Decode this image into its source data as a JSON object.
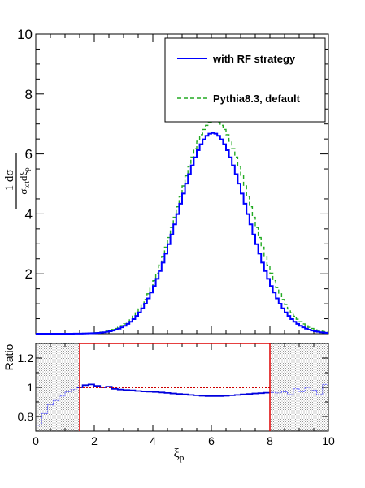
{
  "chart_data": [
    {
      "type": "line",
      "title": "",
      "xlabel": "ξ_p",
      "ylabel": "1/σ_tot dσ/dξ_p",
      "xlim": [
        0,
        10
      ],
      "ylim": [
        0,
        10
      ],
      "x_tick_labels": [
        "0",
        "2",
        "4",
        "6",
        "8",
        "10"
      ],
      "y_tick_labels": [
        "2",
        "4",
        "6",
        "8",
        "10"
      ],
      "legend": {
        "position": "top-right",
        "entries": [
          "with RF strategy",
          "Pythia8.3, default"
        ]
      },
      "series": [
        {
          "name": "with RF strategy",
          "style": "solid-step",
          "color": "#0000ff",
          "mean": 6.05,
          "sigma": 1.18,
          "peak": 6.7
        },
        {
          "name": "Pythia8.3, default",
          "style": "dashed-step",
          "color": "#22aa22",
          "mean": 6.1,
          "sigma": 1.23,
          "peak": 7.1
        }
      ]
    },
    {
      "type": "line",
      "title": "",
      "xlabel": "ξ_p",
      "ylabel": "Ratio",
      "xlim": [
        0,
        10
      ],
      "ylim": [
        0.7,
        1.3
      ],
      "x_tick_labels": [
        "0",
        "2",
        "4",
        "6",
        "8",
        "10"
      ],
      "y_tick_labels": [
        "0.8",
        "1",
        "1.2"
      ],
      "reference_line": 1.0,
      "selection_range": [
        1.5,
        8
      ],
      "shaded_regions": [
        [
          0,
          1.5
        ],
        [
          8,
          10
        ]
      ],
      "series": [
        {
          "name": "ratio",
          "x": [
            0.1,
            0.3,
            0.5,
            0.7,
            0.9,
            1.1,
            1.3,
            1.5,
            1.7,
            1.9,
            2.1,
            2.3,
            2.5,
            2.7,
            2.9,
            3.1,
            3.3,
            3.5,
            3.7,
            3.9,
            4.1,
            4.3,
            4.5,
            4.7,
            4.9,
            5.1,
            5.3,
            5.5,
            5.7,
            5.9,
            6.1,
            6.3,
            6.5,
            6.7,
            6.9,
            7.1,
            7.3,
            7.5,
            7.7,
            7.9,
            8.1,
            8.3,
            8.5,
            8.7,
            8.9,
            9.1,
            9.3,
            9.5,
            9.7,
            9.9
          ],
          "values": [
            0.74,
            0.82,
            0.88,
            0.91,
            0.94,
            0.97,
            0.985,
            1.0,
            1.015,
            1.02,
            1.01,
            1.0,
            1.005,
            0.99,
            0.985,
            0.982,
            0.98,
            0.975,
            0.972,
            0.97,
            0.968,
            0.965,
            0.962,
            0.958,
            0.955,
            0.952,
            0.948,
            0.945,
            0.942,
            0.94,
            0.94,
            0.94,
            0.942,
            0.945,
            0.948,
            0.952,
            0.955,
            0.958,
            0.96,
            0.963,
            0.965,
            0.962,
            0.97,
            0.95,
            0.99,
            0.97,
            1.0,
            0.98,
            0.95,
            1.02
          ]
        }
      ]
    }
  ]
}
